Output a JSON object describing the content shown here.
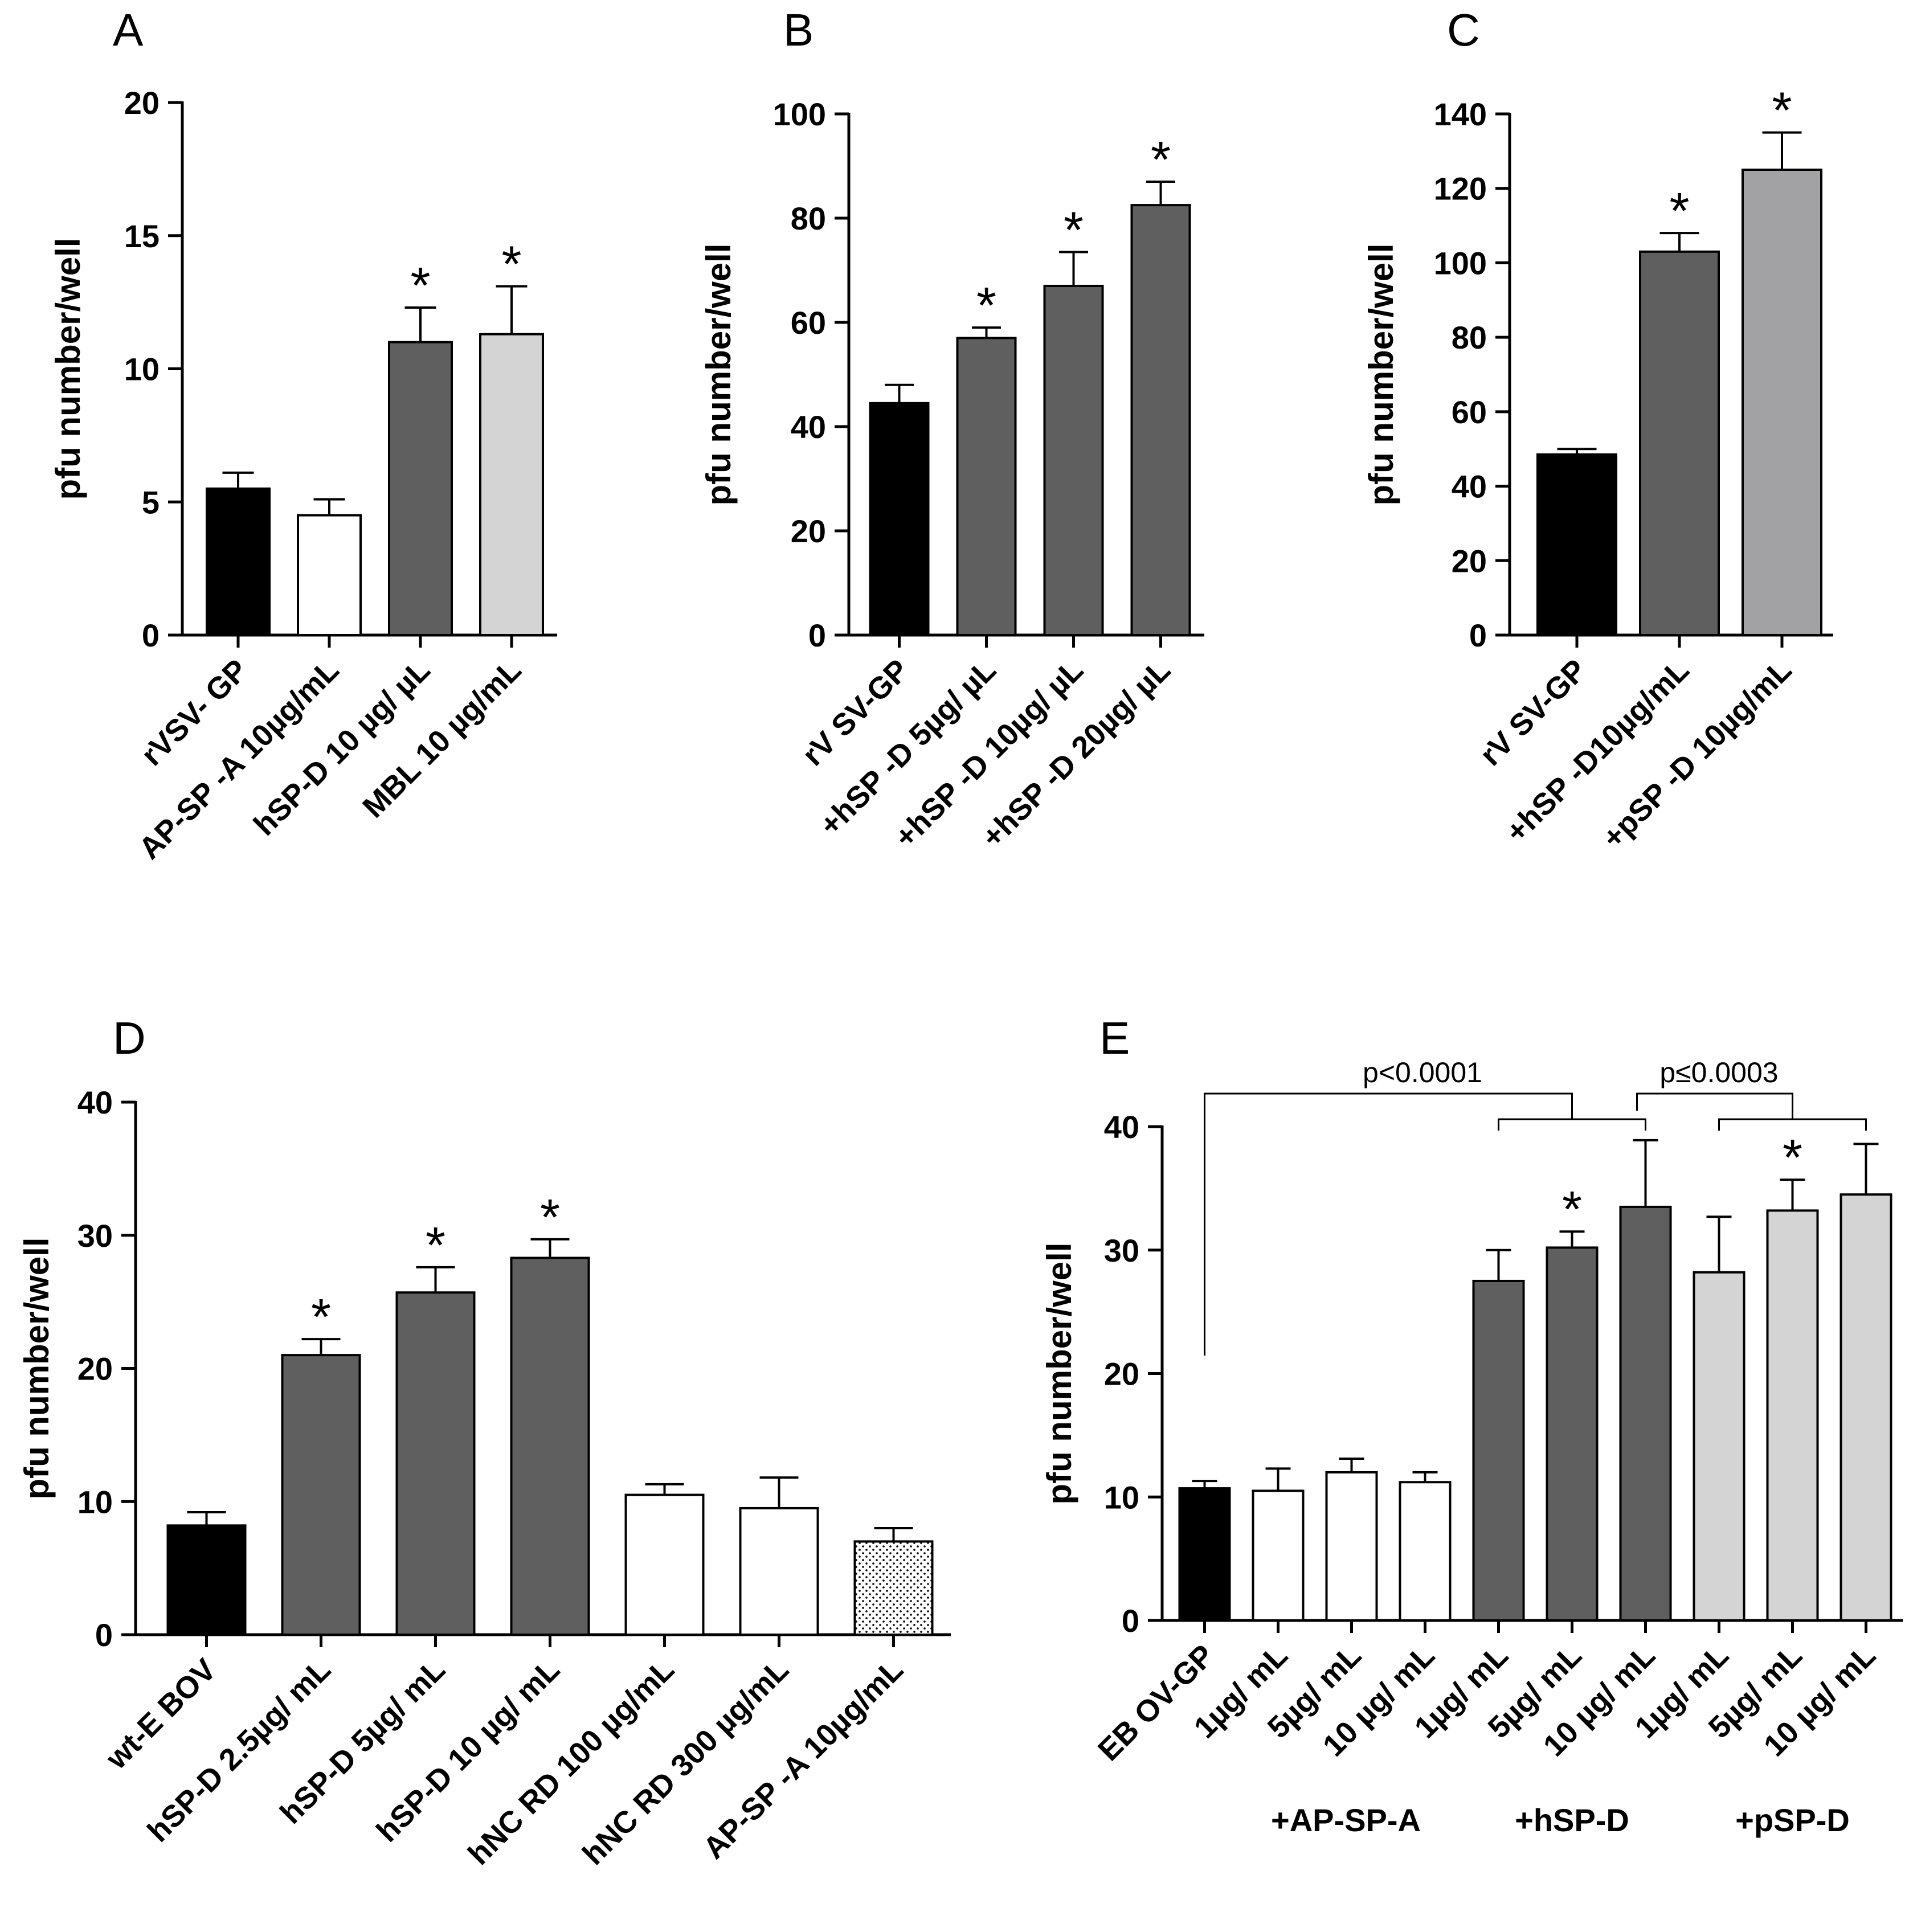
{
  "colors": {
    "black": "#000000",
    "white": "#ffffff",
    "dark_grey": "#5f5f5f",
    "light_grey": "#d4d4d4",
    "mid_grey": "#a2a2a5"
  },
  "chart_data": [
    {
      "panel": "A",
      "type": "bar",
      "ylabel": "pfu number/well",
      "ylim": [
        0,
        20
      ],
      "yticks": [
        0,
        5,
        10,
        15,
        20
      ],
      "categories": [
        "rVSV- GP",
        "AP-SP -A 10µg/mL",
        "hSP-D 10 µg/ µL",
        "MBL 10 µg/mL"
      ],
      "values": [
        5.5,
        4.5,
        11.0,
        11.3
      ],
      "errors": [
        0.6,
        0.6,
        1.3,
        1.8
      ],
      "significant": [
        false,
        false,
        true,
        true
      ],
      "fills": [
        "black",
        "white",
        "dark_grey",
        "light_grey"
      ]
    },
    {
      "panel": "B",
      "type": "bar",
      "ylabel": "pfu number/well",
      "ylim": [
        0,
        100
      ],
      "yticks": [
        0,
        20,
        40,
        60,
        80,
        100
      ],
      "categories": [
        "rV SV-GP",
        "+hSP -D 5µg/ µL",
        "+hSP -D 10µg/ µL",
        "+hSP -D 20µg/ µL"
      ],
      "values": [
        44.5,
        57.0,
        67.0,
        82.5
      ],
      "errors": [
        3.5,
        2.0,
        6.5,
        4.5
      ],
      "significant": [
        false,
        true,
        true,
        true
      ],
      "fills": [
        "black",
        "dark_grey",
        "dark_grey",
        "dark_grey"
      ]
    },
    {
      "panel": "C",
      "type": "bar",
      "ylabel": "pfu number/well",
      "ylim": [
        0,
        140
      ],
      "yticks": [
        0,
        20,
        40,
        60,
        80,
        100,
        120,
        140
      ],
      "categories": [
        "rV SV-GP",
        "+hSP -D10µg/mL",
        "+pSP -D 10µg/mL"
      ],
      "values": [
        48.5,
        103.0,
        125.0
      ],
      "errors": [
        1.5,
        5.0,
        10.0
      ],
      "significant": [
        false,
        true,
        true
      ],
      "fills": [
        "black",
        "dark_grey",
        "mid_grey"
      ]
    },
    {
      "panel": "D",
      "type": "bar",
      "ylabel": "pfu number/well",
      "ylim": [
        0,
        40
      ],
      "yticks": [
        0,
        10,
        20,
        30,
        40
      ],
      "categories": [
        "wt-E BOV",
        "hSP-D 2.5µg/ mL",
        "hSP-D 5µg/ mL",
        "hSP-D 10 µg/ mL",
        "hNC RD 100 µg/mL",
        "hNC RD 300 µg/mL",
        "AP-SP -A 10µg/mL"
      ],
      "values": [
        8.2,
        21.0,
        25.7,
        28.3,
        10.5,
        9.5,
        7.0
      ],
      "errors": [
        1.0,
        1.2,
        1.9,
        1.4,
        0.8,
        2.3,
        1.0
      ],
      "significant": [
        false,
        true,
        true,
        true,
        false,
        false,
        false
      ],
      "fills": [
        "black",
        "dark_grey",
        "dark_grey",
        "dark_grey",
        "white",
        "white",
        "dotted"
      ]
    },
    {
      "panel": "E",
      "type": "bar",
      "ylabel": "pfu number/well",
      "ylim": [
        0,
        40
      ],
      "yticks": [
        0,
        10,
        20,
        30,
        40
      ],
      "categories": [
        "EB OV-GP",
        "1µg/ mL",
        "5µg/ mL",
        "10 µg/ mL",
        "1µg/ mL",
        "5µg/ mL",
        "10 µg/ mL",
        "1µg/ mL",
        "5µg/ mL",
        "10 µg/ mL"
      ],
      "values": [
        10.7,
        10.5,
        12.0,
        11.2,
        27.5,
        30.2,
        33.5,
        28.2,
        33.2,
        34.5
      ],
      "errors": [
        0.6,
        1.8,
        1.1,
        0.8,
        2.5,
        1.3,
        5.4,
        4.5,
        2.5,
        4.1
      ],
      "significant": [
        false,
        false,
        false,
        false,
        false,
        true,
        false,
        false,
        true,
        false
      ],
      "fills": [
        "black",
        "white",
        "white",
        "white",
        "dark_grey",
        "dark_grey",
        "dark_grey",
        "light_grey",
        "light_grey",
        "light_grey"
      ],
      "groups": [
        "+AP-SP-A",
        "+hSP-D",
        "+pSP-D"
      ],
      "annotations": [
        "p<0.0001",
        "p≤0.0003"
      ]
    }
  ]
}
